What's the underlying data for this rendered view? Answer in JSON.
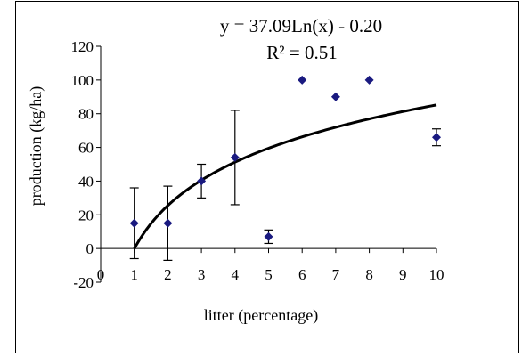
{
  "chart_data": {
    "type": "scatter",
    "xlabel": "litter (percentage)",
    "ylabel": "production (kg/ha)",
    "xlim": [
      0,
      10
    ],
    "ylim": [
      -20,
      120
    ],
    "x_ticks": [
      "0",
      "1",
      "2",
      "3",
      "4",
      "5",
      "6",
      "7",
      "8",
      "9",
      "10"
    ],
    "y_ticks": [
      "-20",
      "0",
      "20",
      "40",
      "60",
      "80",
      "100",
      "120"
    ],
    "grid": false,
    "marker_color": "#1a1a80",
    "series": [
      {
        "points": [
          {
            "x": 1,
            "y": 15,
            "err": 21
          },
          {
            "x": 2,
            "y": 15,
            "err": 22
          },
          {
            "x": 3,
            "y": 40,
            "err": 10
          },
          {
            "x": 4,
            "y": 54,
            "err": 28
          },
          {
            "x": 5,
            "y": 7,
            "err": 4
          },
          {
            "x": 6,
            "y": 100,
            "err": 0
          },
          {
            "x": 7,
            "y": 90,
            "err": 0
          },
          {
            "x": 8,
            "y": 100,
            "err": 0
          },
          {
            "x": 10,
            "y": 66,
            "err": 5
          }
        ]
      }
    ],
    "trendline": {
      "type": "logarithmic",
      "a": 37.09,
      "b": -0.2
    },
    "annotations": {
      "equation": "y = 37.09Ln(x) - 0.20",
      "r_squared": "R² = 0.51"
    }
  }
}
